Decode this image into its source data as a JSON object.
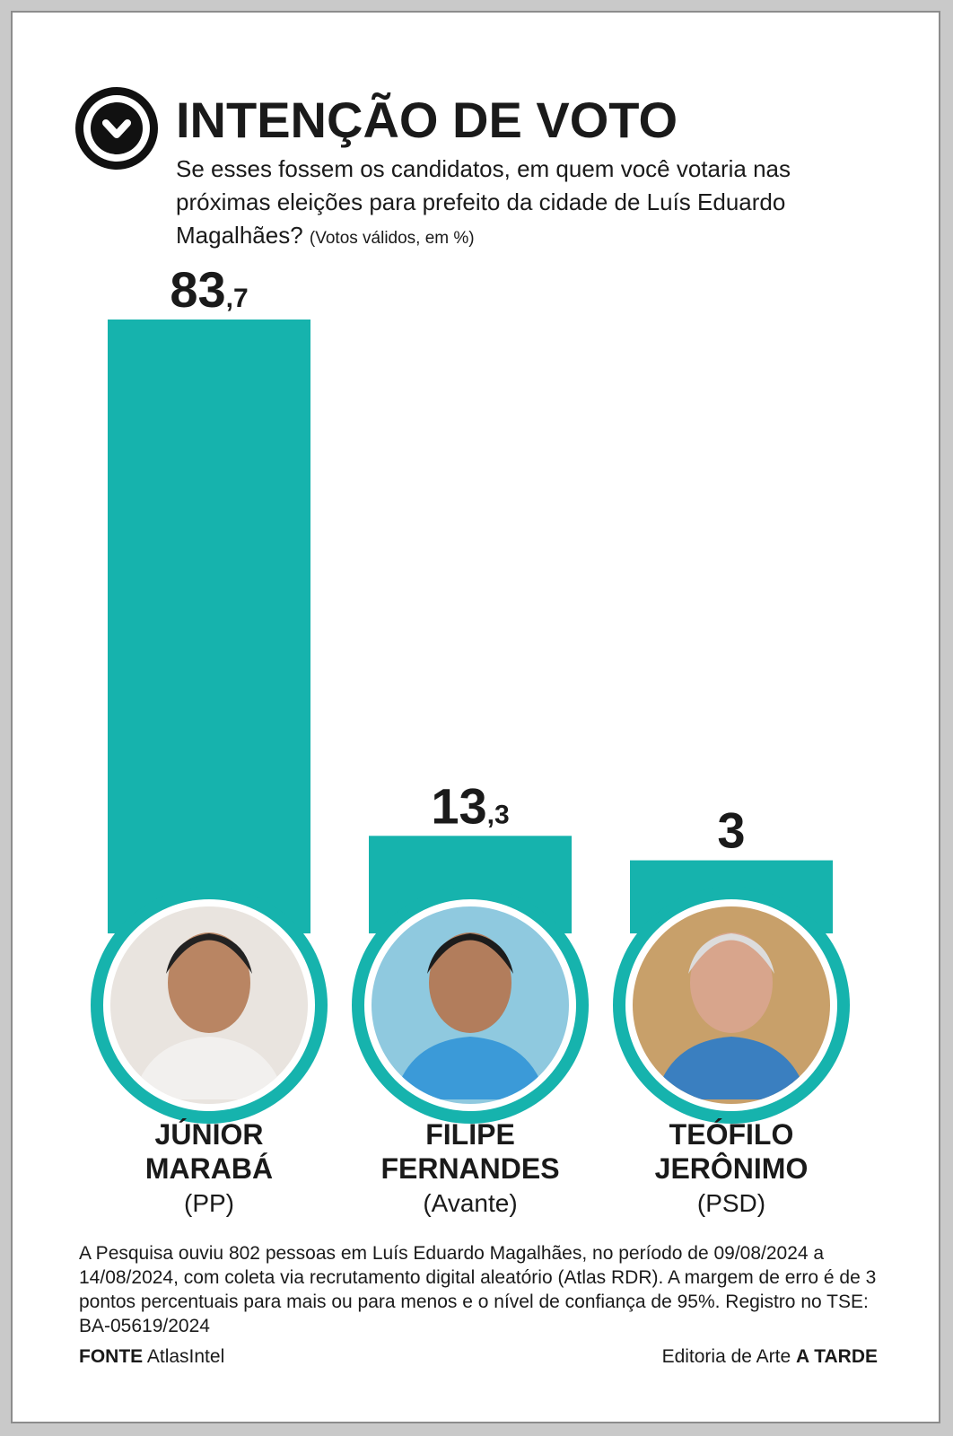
{
  "header": {
    "title": "INTENÇÃO DE VOTO",
    "question": "Se esses fossem os candidatos, em quem você votaria nas próximas eleições para prefeito da cidade de Luís Eduardo Magalhães?",
    "note": "(Votos válidos, em %)"
  },
  "colors": {
    "bar": "#16b3ad",
    "ring": "#16b3ad",
    "text": "#1a1a1a"
  },
  "chart_data": {
    "type": "bar",
    "title": "INTENÇÃO DE VOTO",
    "unit": "%",
    "categories": [
      "JÚNIOR MARABÁ",
      "FILIPE FERNANDES",
      "TEÓFILO JERÔNIMO"
    ],
    "values": [
      83.7,
      13.3,
      3
    ],
    "labels": [
      {
        "int": "83",
        "dec": ",7"
      },
      {
        "int": "13",
        "dec": ",3"
      },
      {
        "int": "3",
        "dec": ""
      }
    ],
    "grid": false,
    "legend": "none"
  },
  "candidates": [
    {
      "line1": "JÚNIOR",
      "line2": "MARABÁ",
      "party": "(PP)",
      "photo": "portrait-photo"
    },
    {
      "line1": "FILIPE",
      "line2": "FERNANDES",
      "party": "(Avante)",
      "photo": "portrait-photo"
    },
    {
      "line1": "TEÓFILO",
      "line2": "JERÔNIMO",
      "party": "(PSD)",
      "photo": "portrait-photo"
    }
  ],
  "footer": {
    "methodology": "A Pesquisa ouviu 802 pessoas em Luís Eduardo Magalhães, no período de 09/08/2024 a 14/08/2024, com coleta via recrutamento digital aleatório (Atlas RDR). A margem de erro é de 3 pontos percentuais para mais ou para menos e o nível de confiança de 95%. Registro no TSE: BA-05619/2024",
    "source_label": "FONTE",
    "source_value": "AtlasIntel",
    "credit_prefix": "Editoria de Arte",
    "credit_brand": "A TARDE"
  }
}
